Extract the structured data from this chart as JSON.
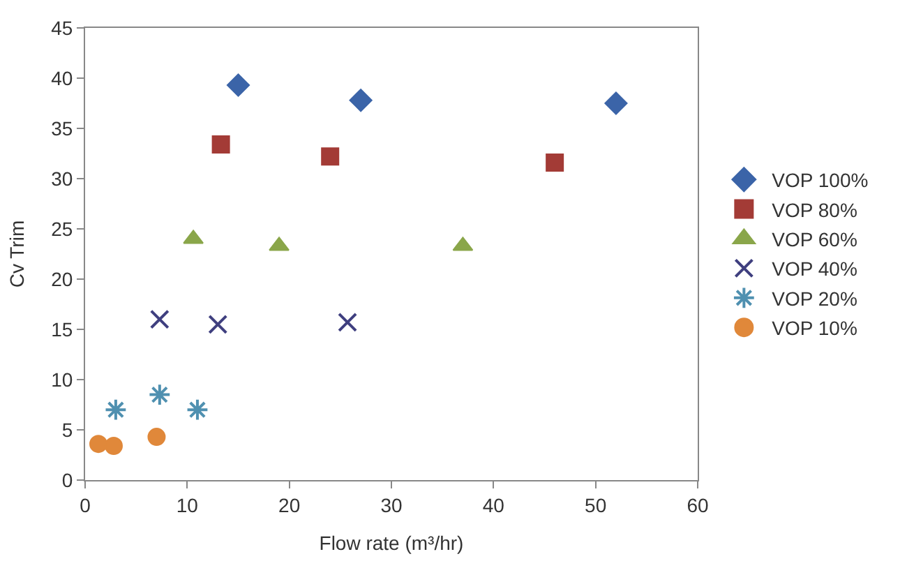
{
  "chart_data": {
    "type": "scatter",
    "xlabel": "Flow rate (m³/hr)",
    "ylabel": "Cv Trim",
    "xlim": [
      0,
      60
    ],
    "xticks": [
      0,
      10,
      20,
      30,
      40,
      50,
      60
    ],
    "ylim": [
      0,
      45
    ],
    "yticks": [
      0,
      5,
      10,
      15,
      20,
      25,
      30,
      35,
      40,
      45
    ],
    "legend": "right",
    "series": [
      {
        "name": "VOP 100%",
        "color": "#3b64a8",
        "marker": "diamond",
        "x": [
          15,
          27,
          52
        ],
        "values": [
          39.3,
          37.8,
          37.5
        ]
      },
      {
        "name": "VOP 80%",
        "color": "#a33b36",
        "marker": "square",
        "x": [
          13.3,
          24,
          46
        ],
        "values": [
          33.4,
          32.2,
          31.6
        ]
      },
      {
        "name": "VOP 60%",
        "color": "#8aa64a",
        "marker": "triangle",
        "x": [
          10.6,
          19,
          37
        ],
        "values": [
          24,
          23.3,
          23.3
        ]
      },
      {
        "name": "VOP 40%",
        "color": "#3f3f7f",
        "marker": "cross",
        "x": [
          7.3,
          13,
          25.7
        ],
        "values": [
          16,
          15.5,
          15.7
        ]
      },
      {
        "name": "VOP 20%",
        "color": "#4f90b0",
        "marker": "cross",
        "x": [
          3,
          7.3,
          11
        ],
        "values": [
          7,
          8.5,
          7
        ]
      },
      {
        "name": "VOP 10%",
        "color": "#e0883a",
        "marker": "circle",
        "x": [
          1.3,
          2.8,
          7
        ],
        "values": [
          3.6,
          3.4,
          4.3
        ]
      }
    ]
  }
}
